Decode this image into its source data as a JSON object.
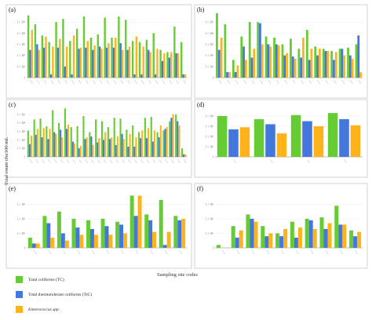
{
  "figure": {
    "y_axis_label": "Total count cfu/100 mL",
    "x_axis_label": "Sampling site codes"
  },
  "legend": [
    {
      "label": "Total coliforms (TC)",
      "color": "#66cc33",
      "italic": false
    },
    {
      "label": "Total thermotolerant coliforms (TtC)",
      "color": "#4477dd",
      "italic": false
    },
    {
      "label": "Enterococcus spp.",
      "color": "#ffb31a",
      "italic": true
    }
  ],
  "chart_data": [
    {
      "type": "bar",
      "panel_label": "(a)",
      "scale": "log",
      "ylim_exp": [
        0,
        6
      ],
      "y_ticks": [
        "1",
        "1 × 10¹",
        "1 × 10²",
        "1 × 10³",
        "1 × 10⁴",
        "1 × 10⁵"
      ],
      "categories": [
        "",
        "",
        "",
        "",
        "",
        "",
        "",
        "",
        "",
        "",
        "",
        "",
        "",
        "",
        "",
        "",
        "",
        "",
        "",
        "",
        "",
        "",
        ""
      ],
      "series": [
        {
          "name": "Total coliforms (TC)",
          "color": "#66cc33",
          "values": [
            5.6,
            4.8,
            3.8,
            3.2,
            5.0,
            5.3,
            3.3,
            4.4,
            5.5,
            3.6,
            3.9,
            5.4,
            3.6,
            5.5,
            5.2,
            3.3,
            3.2,
            3.4,
            4.0,
            2.5,
            2.3,
            4.6,
            3.2
          ]
        },
        {
          "name": "Total thermotolerant coliforms (TtC)",
          "color": "#4477dd",
          "values": [
            2.5,
            3.0,
            2.7,
            0.3,
            2.7,
            1.0,
            0.3,
            2.6,
            2.7,
            2.5,
            2.8,
            2.7,
            2.7,
            3.1,
            2.5,
            0.3,
            0.3,
            2.5,
            0.3,
            1.5,
            1.8,
            2.2,
            0.3
          ]
        },
        {
          "name": "Enterococcus spp.",
          "color": "#ffb31a",
          "values": [
            4.3,
            2.5,
            3.7,
            2.8,
            3.5,
            2.8,
            3.8,
            2.7,
            3.3,
            2.9,
            2.6,
            3.1,
            3.6,
            2.5,
            2.8,
            3.7,
            2.8,
            2.3,
            2.6,
            2.2,
            2.3,
            2.2,
            0.3
          ]
        }
      ]
    },
    {
      "type": "bar",
      "panel_label": "(b)",
      "scale": "log",
      "ylim_exp": [
        0,
        6
      ],
      "y_ticks": [
        "1",
        "1 × 10¹",
        "1 × 10²",
        "1 × 10³",
        "1 × 10⁴",
        "1 × 10⁵"
      ],
      "categories": [
        "",
        "",
        "",
        "",
        "",
        "",
        "",
        "",
        "",
        "",
        "",
        "",
        "",
        "",
        "",
        "",
        "",
        ""
      ],
      "series": [
        {
          "name": "Total coliforms (TC)",
          "color": "#66cc33",
          "values": [
            5.8,
            4.8,
            1.6,
            3.7,
            5.0,
            5.0,
            3.7,
            3.6,
            3.0,
            3.5,
            2.6,
            4.3,
            2.8,
            2.6,
            2.4,
            2.6,
            2.7,
            3.0
          ]
        },
        {
          "name": "Total thermotolerant coliforms (TtC)",
          "color": "#4477dd",
          "values": [
            2.5,
            0.5,
            0.5,
            2.8,
            1.8,
            4.9,
            3.0,
            3.0,
            2.0,
            1.9,
            1.8,
            1.6,
            2.0,
            2.4,
            1.6,
            2.6,
            2.0,
            3.8
          ]
        },
        {
          "name": "Enterococcus spp.",
          "color": "#ffb31a",
          "values": [
            3.6,
            0.5,
            1.1,
            1.6,
            2.6,
            3.0,
            2.8,
            2.9,
            2.2,
            1.7,
            3.6,
            2.6,
            2.6,
            2.4,
            2.3,
            2.0,
            1.7,
            0.5
          ]
        }
      ]
    },
    {
      "type": "bar",
      "panel_label": "(c)",
      "scale": "log",
      "ylim_exp": [
        0,
        6
      ],
      "y_ticks": [
        "1",
        "1 × 10¹",
        "1 × 10²",
        "1 × 10³",
        "1 × 10⁴",
        "1 × 10⁵"
      ],
      "categories": [
        "",
        "",
        "",
        "",
        "",
        "",
        "",
        "",
        "",
        "",
        "",
        "",
        "",
        "",
        "",
        "",
        "",
        "",
        "",
        "",
        "",
        "",
        "",
        "",
        "",
        ""
      ],
      "series": [
        {
          "name": "Total coliforms (TC)",
          "color": "#66cc33",
          "values": [
            3.1,
            4.4,
            4.5,
            3.6,
            5.5,
            4.0,
            5.7,
            3.5,
            3.6,
            4.8,
            2.9,
            4.4,
            4.2,
            3.5,
            4.6,
            4.5,
            3.2,
            3.7,
            2.9,
            4.6,
            4.7,
            2.9,
            3.1,
            4.2,
            5.0,
            1.0
          ]
        },
        {
          "name": "Total thermotolerant coliforms (TtC)",
          "color": "#4477dd",
          "values": [
            1.5,
            2.6,
            2.3,
            2.1,
            2.9,
            3.2,
            3.3,
            1.8,
            1.0,
            2.1,
            2.4,
            1.7,
            2.0,
            2.1,
            1.4,
            2.7,
            1.2,
            1.2,
            2.2,
            2.2,
            1.8,
            2.3,
            3.3,
            4.6,
            4.2,
            0.3
          ]
        },
        {
          "name": "Enterococcus spp.",
          "color": "#ffb31a",
          "values": [
            2.5,
            3.3,
            3.4,
            3.3,
            2.7,
            2.3,
            3.8,
            1.6,
            1.3,
            2.3,
            1.4,
            2.2,
            2.9,
            2.3,
            2.4,
            2.1,
            2.7,
            2.3,
            3.1,
            3.4,
            3.1,
            3.7,
            3.5,
            5.0,
            3.7,
            0.3
          ]
        }
      ]
    },
    {
      "type": "bar",
      "panel_label": "(d)",
      "scale": "log",
      "ylim_exp": [
        0,
        5
      ],
      "y_ticks": [
        "1",
        "1 × 10¹",
        "1 × 10²",
        "1 × 10³",
        "1 × 10⁴"
      ],
      "categories": [
        "",
        "",
        "",
        ""
      ],
      "series": [
        {
          "name": "Total coliforms (TC)",
          "color": "#66cc33",
          "values": [
            4.0,
            3.7,
            4.1,
            4.3
          ]
        },
        {
          "name": "Total thermotolerant coliforms (TtC)",
          "color": "#4477dd",
          "values": [
            2.7,
            3.2,
            3.5,
            3.7
          ]
        },
        {
          "name": "Enterococcus spp.",
          "color": "#ffb31a",
          "values": [
            2.9,
            2.3,
            3.0,
            3.1
          ]
        }
      ]
    },
    {
      "type": "bar",
      "panel_label": "(e)",
      "scale": "log",
      "ylim_exp": [
        0,
        4
      ],
      "y_ticks": [
        "1",
        "1 × 10¹",
        "1 × 10²",
        "1 × 10³"
      ],
      "categories": [
        "",
        "",
        "",
        "",
        "",
        "",
        "",
        "",
        "",
        "",
        ""
      ],
      "series": [
        {
          "name": "Total coliforms (TC)",
          "color": "#66cc33",
          "values": [
            0.7,
            2.2,
            2.5,
            2.0,
            1.9,
            2.0,
            1.8,
            3.6,
            2.3,
            3.3,
            2.2
          ]
        },
        {
          "name": "Total thermotolerant coliforms (TtC)",
          "color": "#4477dd",
          "values": [
            0.3,
            1.7,
            1.0,
            1.4,
            1.3,
            1.5,
            1.6,
            2.2,
            1.9,
            0.2,
            1.9
          ]
        },
        {
          "name": "Enterococcus spp.",
          "color": "#ffb31a",
          "values": [
            0.3,
            0.7,
            0.5,
            0.9,
            0.9,
            0.9,
            1.0,
            3.6,
            1.1,
            1.1,
            2.0
          ]
        }
      ]
    },
    {
      "type": "bar",
      "panel_label": "(f)",
      "scale": "log",
      "ylim_exp": [
        0,
        4
      ],
      "y_ticks": [
        "1",
        "1 × 10¹",
        "1 × 10²",
        "1 × 10³"
      ],
      "categories": [
        "",
        "",
        "",
        "",
        "",
        "",
        "",
        "",
        "",
        ""
      ],
      "series": [
        {
          "name": "Total coliforms (TC)",
          "color": "#66cc33",
          "values": [
            0.2,
            1.5,
            2.3,
            1.5,
            1.0,
            1.8,
            2.0,
            2.1,
            2.9,
            1.2
          ]
        },
        {
          "name": "Total thermotolerant coliforms (TtC)",
          "color": "#4477dd",
          "values": [
            0.0,
            0.7,
            2.0,
            0.8,
            0.8,
            0.7,
            1.9,
            1.3,
            1.6,
            0.8
          ]
        },
        {
          "name": "Enterococcus spp.",
          "color": "#ffb31a",
          "values": [
            0.0,
            1.2,
            1.8,
            1.0,
            1.3,
            1.4,
            1.3,
            1.7,
            1.6,
            1.1
          ]
        }
      ]
    }
  ]
}
